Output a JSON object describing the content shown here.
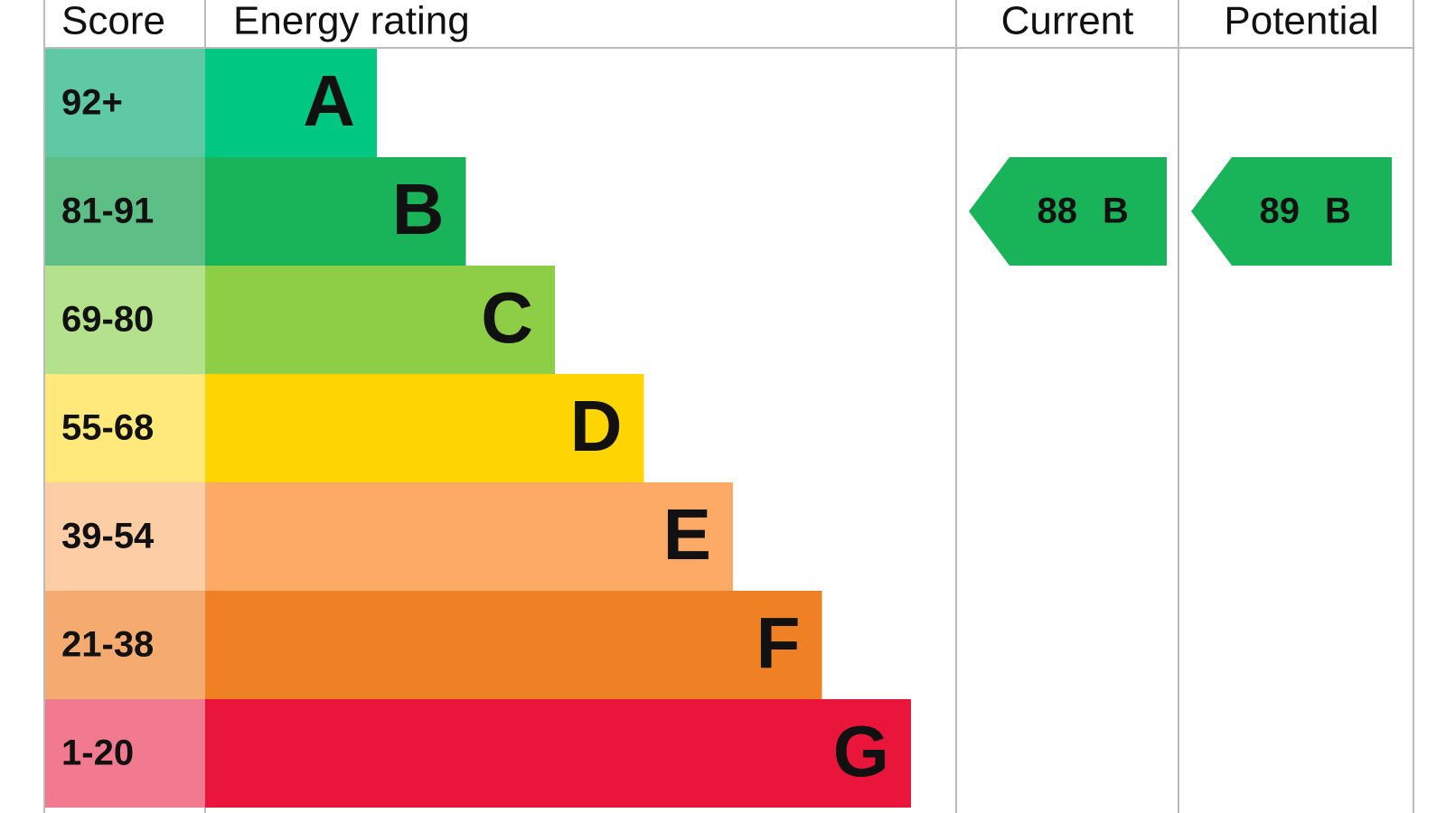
{
  "header": {
    "score": "Score",
    "rating": "Energy rating",
    "current": "Current",
    "potential": "Potential"
  },
  "rows": [
    {
      "score": "92+",
      "letter": "A",
      "color": "#00c781",
      "score_color": "#5fc8a5"
    },
    {
      "score": "81-91",
      "letter": "B",
      "color": "#19b459",
      "score_color": "#5ebf86"
    },
    {
      "score": "69-80",
      "letter": "C",
      "color": "#8dce46",
      "score_color": "#b4e18c"
    },
    {
      "score": "55-68",
      "letter": "D",
      "color": "#ffd500",
      "score_color": "#ffe97b"
    },
    {
      "score": "39-54",
      "letter": "E",
      "color": "#fcaa65",
      "score_color": "#fdcda6"
    },
    {
      "score": "21-38",
      "letter": "F",
      "color": "#ef8023",
      "score_color": "#f5ab70"
    },
    {
      "score": "1-20",
      "letter": "G",
      "color": "#e9153b",
      "score_color": "#f17a90"
    }
  ],
  "current": {
    "value": 88,
    "letter": "B",
    "color": "#19b459"
  },
  "potential": {
    "value": 89,
    "letter": "B",
    "color": "#19b459"
  }
}
